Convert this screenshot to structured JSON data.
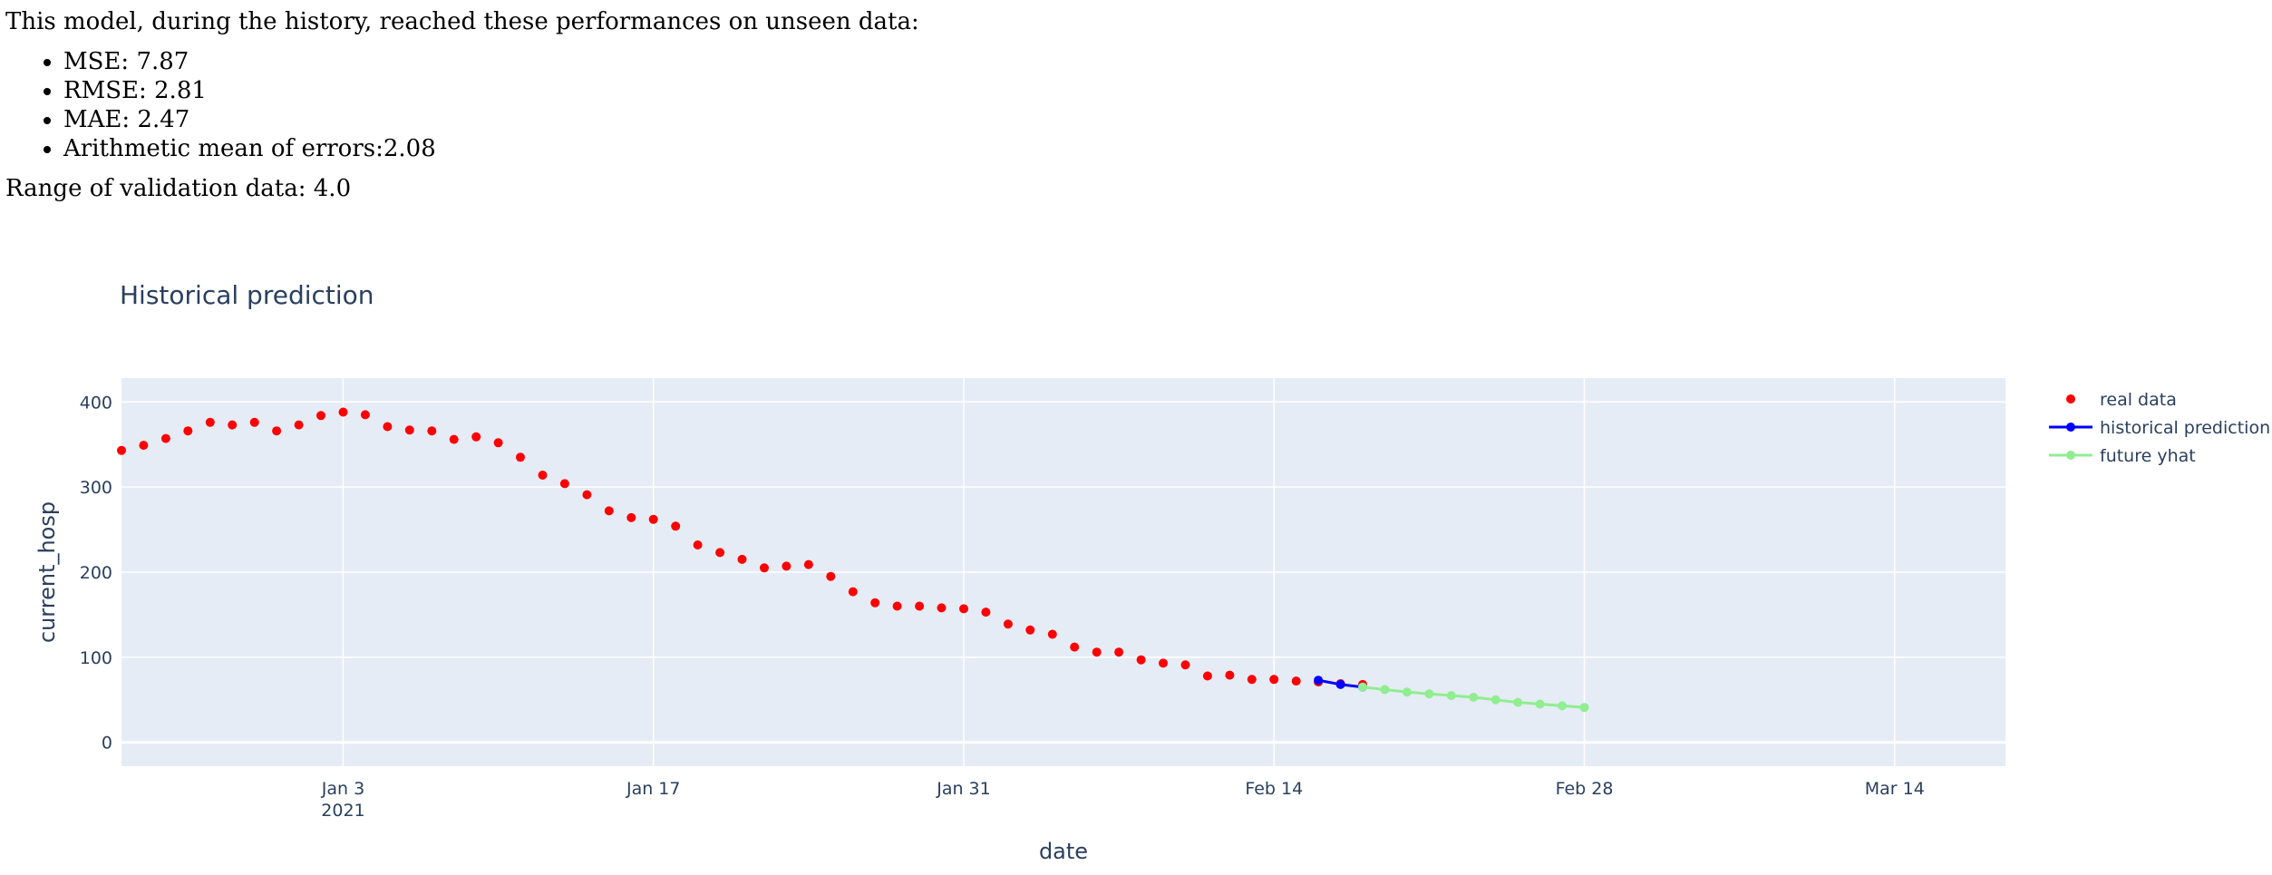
{
  "report": {
    "intro": "This model, during the history, reached these performances on unseen data:",
    "metrics": [
      "MSE: 7.87",
      "RMSE: 2.81",
      "MAE: 2.47",
      "Arithmetic mean of errors:2.08"
    ],
    "range_text": "Range of validation data: 4.0"
  },
  "chart_data": {
    "type": "scatter",
    "title": "Historical prediction",
    "xlabel": "date",
    "ylabel": "current_hosp",
    "xlim": [
      "2020-12-24",
      "2021-03-19"
    ],
    "ylim": [
      -28,
      428
    ],
    "x_ticks": [
      {
        "date": "2021-01-03",
        "label": "Jan 3",
        "sublabel": "2021"
      },
      {
        "date": "2021-01-17",
        "label": "Jan 17",
        "sublabel": ""
      },
      {
        "date": "2021-01-31",
        "label": "Jan 31",
        "sublabel": ""
      },
      {
        "date": "2021-02-14",
        "label": "Feb 14",
        "sublabel": ""
      },
      {
        "date": "2021-02-28",
        "label": "Feb 28",
        "sublabel": ""
      },
      {
        "date": "2021-03-14",
        "label": "Mar 14",
        "sublabel": ""
      }
    ],
    "y_ticks": [
      0,
      100,
      200,
      300,
      400
    ],
    "grid": true,
    "legend_position": "top-right",
    "series": [
      {
        "name": "real data",
        "mode": "markers",
        "color": "#ff0000",
        "x": [
          "2020-12-24",
          "2020-12-25",
          "2020-12-26",
          "2020-12-27",
          "2020-12-28",
          "2020-12-29",
          "2020-12-30",
          "2020-12-31",
          "2021-01-01",
          "2021-01-02",
          "2021-01-03",
          "2021-01-04",
          "2021-01-05",
          "2021-01-06",
          "2021-01-07",
          "2021-01-08",
          "2021-01-09",
          "2021-01-10",
          "2021-01-11",
          "2021-01-12",
          "2021-01-13",
          "2021-01-14",
          "2021-01-15",
          "2021-01-16",
          "2021-01-17",
          "2021-01-18",
          "2021-01-19",
          "2021-01-20",
          "2021-01-21",
          "2021-01-22",
          "2021-01-23",
          "2021-01-24",
          "2021-01-25",
          "2021-01-26",
          "2021-01-27",
          "2021-01-28",
          "2021-01-29",
          "2021-01-30",
          "2021-01-31",
          "2021-02-01",
          "2021-02-02",
          "2021-02-03",
          "2021-02-04",
          "2021-02-05",
          "2021-02-06",
          "2021-02-07",
          "2021-02-08",
          "2021-02-09",
          "2021-02-10",
          "2021-02-11",
          "2021-02-12",
          "2021-02-13",
          "2021-02-14",
          "2021-02-15",
          "2021-02-16",
          "2021-02-17",
          "2021-02-18"
        ],
        "y": [
          343,
          349,
          357,
          366,
          376,
          373,
          376,
          366,
          373,
          384,
          388,
          385,
          371,
          367,
          366,
          356,
          359,
          352,
          335,
          314,
          304,
          291,
          272,
          264,
          262,
          254,
          232,
          223,
          215,
          205,
          207,
          209,
          195,
          177,
          164,
          160,
          160,
          158,
          157,
          153,
          139,
          132,
          127,
          112,
          106,
          106,
          97,
          93,
          91,
          78,
          79,
          74,
          74,
          72,
          71,
          69,
          68
        ]
      },
      {
        "name": "historical prediction",
        "mode": "lines+markers",
        "color": "#0000ff",
        "x": [
          "2021-02-16",
          "2021-02-17",
          "2021-02-18"
        ],
        "y": [
          73,
          68,
          65
        ]
      },
      {
        "name": "future yhat",
        "mode": "lines+markers",
        "color": "#90ee90",
        "x": [
          "2021-02-18",
          "2021-02-19",
          "2021-02-20",
          "2021-02-21",
          "2021-02-22",
          "2021-02-23",
          "2021-02-24",
          "2021-02-25",
          "2021-02-26",
          "2021-02-27",
          "2021-02-28"
        ],
        "y": [
          65,
          62,
          59,
          57,
          55,
          53,
          50,
          47,
          45,
          43,
          41
        ]
      }
    ]
  }
}
